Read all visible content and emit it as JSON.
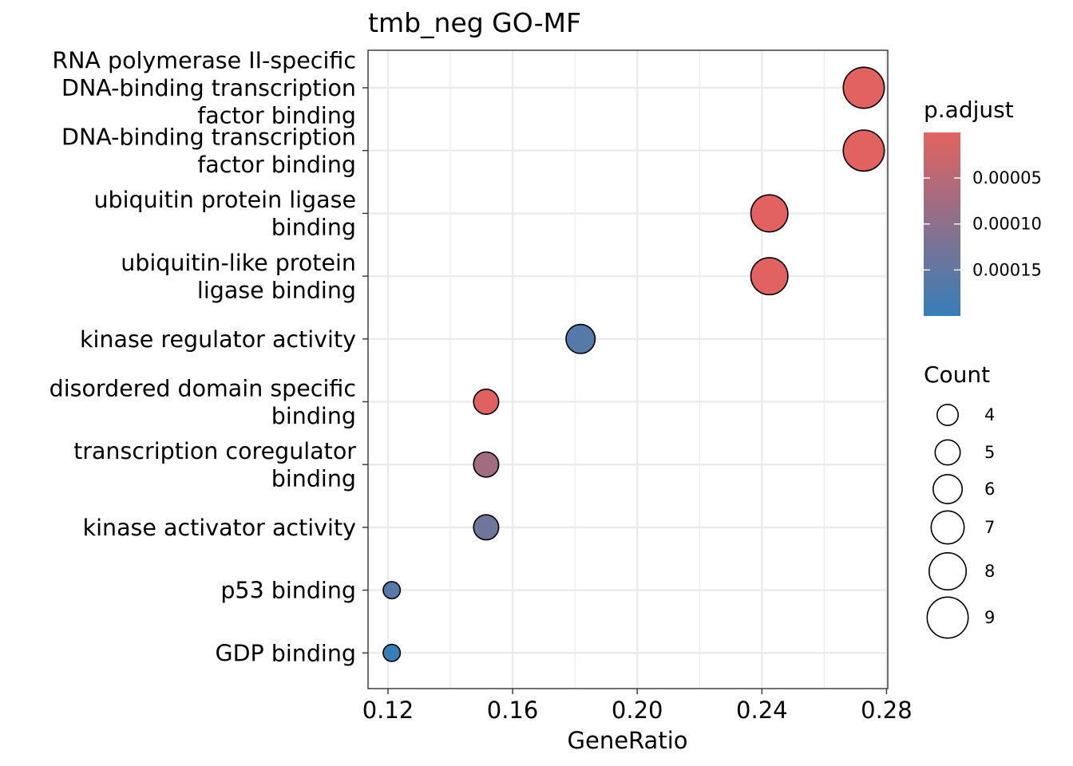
{
  "chart_data": {
    "type": "scatter",
    "title": "tmb_neg GO-MF",
    "xlabel": "GeneRatio",
    "ylabel": "",
    "xlim": [
      0.1136,
      0.2804
    ],
    "xticks": [
      0.12,
      0.16,
      0.2,
      0.24,
      0.28
    ],
    "xtick_labels": [
      "0.12",
      "0.16",
      "0.20",
      "0.24",
      "0.28"
    ],
    "grid": true,
    "categories": [
      {
        "lines": [
          "RNA polymerase II-specific",
          "DNA-binding transcription",
          "factor binding"
        ]
      },
      {
        "lines": [
          "DNA-binding transcription",
          "factor binding"
        ]
      },
      {
        "lines": [
          "ubiquitin protein ligase",
          "binding"
        ]
      },
      {
        "lines": [
          "ubiquitin-like protein",
          "ligase binding"
        ]
      },
      {
        "lines": [
          "kinase regulator activity"
        ]
      },
      {
        "lines": [
          "disordered domain specific",
          "binding"
        ]
      },
      {
        "lines": [
          "transcription coregulator",
          "binding"
        ]
      },
      {
        "lines": [
          "kinase activator activity"
        ]
      },
      {
        "lines": [
          "p53 binding"
        ]
      },
      {
        "lines": [
          "GDP binding"
        ]
      }
    ],
    "points": [
      {
        "category": "RNA polymerase II-specific DNA-binding transcription factor binding",
        "gene_ratio": 0.2727,
        "count": 9,
        "p_adjust": 5e-07
      },
      {
        "category": "DNA-binding transcription factor binding",
        "gene_ratio": 0.2727,
        "count": 9,
        "p_adjust": 5e-07
      },
      {
        "category": "ubiquitin protein ligase binding",
        "gene_ratio": 0.2424,
        "count": 8,
        "p_adjust": 2e-06
      },
      {
        "category": "ubiquitin-like protein ligase binding",
        "gene_ratio": 0.2424,
        "count": 8,
        "p_adjust": 2e-06
      },
      {
        "category": "kinase regulator activity",
        "gene_ratio": 0.1818,
        "count": 6,
        "p_adjust": 0.000165
      },
      {
        "category": "disordered domain specific binding",
        "gene_ratio": 0.1515,
        "count": 5,
        "p_adjust": 3e-06
      },
      {
        "category": "transcription coregulator binding",
        "gene_ratio": 0.1515,
        "count": 5,
        "p_adjust": 7.5e-05
      },
      {
        "category": "kinase activator activity",
        "gene_ratio": 0.1515,
        "count": 5,
        "p_adjust": 0.000135
      },
      {
        "category": "p53 binding",
        "gene_ratio": 0.1212,
        "count": 3,
        "p_adjust": 0.000165
      },
      {
        "category": "GDP binding",
        "gene_ratio": 0.1212,
        "count": 3,
        "p_adjust": 0.0002
      }
    ],
    "color_legend": {
      "title": "p.adjust",
      "ticks": [
        5e-05,
        0.0001,
        0.00015
      ],
      "tick_labels": [
        "0.00005",
        "0.00010",
        "0.00015"
      ],
      "range": [
        5e-07,
        0.0002
      ],
      "low_value_color": "#E2625F",
      "high_value_color": "#377EB8"
    },
    "size_legend": {
      "title": "Count",
      "values": [
        4,
        5,
        6,
        7,
        8,
        9
      ],
      "labels": [
        "4",
        "5",
        "6",
        "7",
        "8",
        "9"
      ]
    }
  }
}
